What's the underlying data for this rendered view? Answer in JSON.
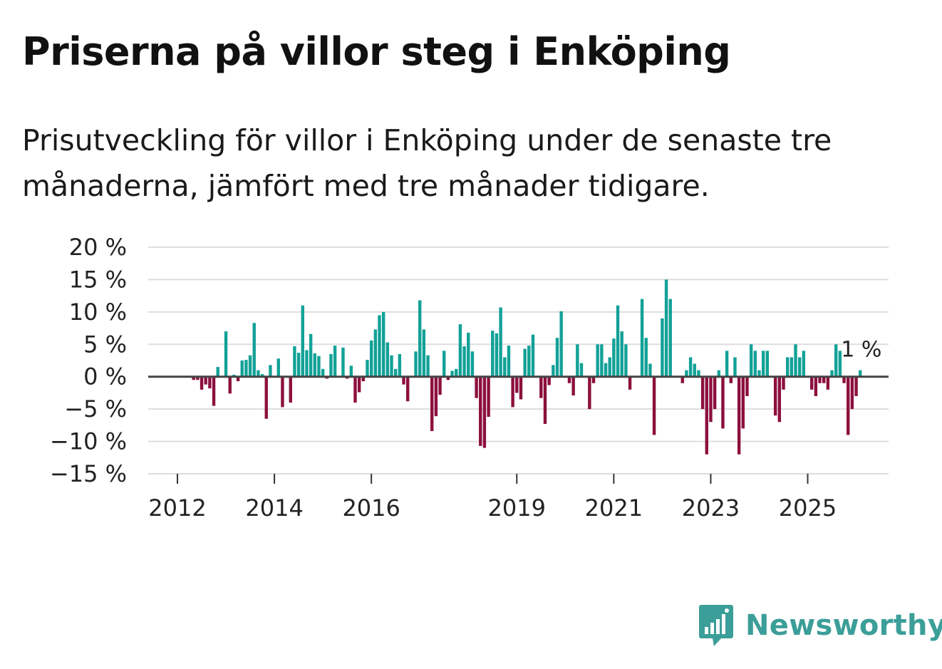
{
  "title": "Priserna på villor steg i Enköping",
  "subtitle": "Prisutveckling för villor i Enköping under de senaste tre månaderna, jämfört med tre månader tidigare.",
  "brand": {
    "name": "Newsworthy",
    "icon": "newsworthy-logo-icon"
  },
  "colors": {
    "positive": "#12a197",
    "negative": "#8c0f3d",
    "grid": "#dddddd",
    "zero_line": "#444444",
    "brand": "#3c9e99",
    "text": "#111111"
  },
  "chart_data": {
    "type": "bar",
    "title": "Priserna på villor steg i Enköping",
    "subtitle": "Prisutveckling för villor i Enköping under de senaste tre månaderna, jämfört med tre månader tidigare.",
    "xlabel": "",
    "ylabel": "",
    "unit": "%",
    "ylim": [
      -15,
      20
    ],
    "yticks": [
      20,
      15,
      10,
      5,
      0,
      -5,
      -10,
      -15
    ],
    "ytick_labels": [
      "20 %",
      "15 %",
      "10 %",
      "5 %",
      "0 %",
      "−5 %",
      "−10 %",
      "−15 %"
    ],
    "x_start": "2011-10",
    "frequency": "monthly",
    "xticks": [
      {
        "label": "2012",
        "index": 3
      },
      {
        "label": "2014",
        "index": 27
      },
      {
        "label": "2016",
        "index": 51
      },
      {
        "label": "2019",
        "index": 87
      },
      {
        "label": "2021",
        "index": 111
      },
      {
        "label": "2023",
        "index": 135
      },
      {
        "label": "2025",
        "index": 159
      }
    ],
    "last_value_label": "1 %",
    "grid": true,
    "values": [
      null,
      null,
      null,
      null,
      null,
      null,
      null,
      -0.5,
      -0.5,
      -2,
      -1.2,
      -1.8,
      -4.5,
      1.5,
      0,
      7,
      -2.6,
      0.3,
      -0.7,
      2.5,
      2.6,
      3.3,
      8.3,
      1.0,
      0.4,
      -6.5,
      1.8,
      0,
      2.8,
      -4.7,
      0,
      -4.0,
      4.7,
      3.7,
      11.0,
      4.1,
      6.6,
      3.6,
      3.2,
      1.2,
      -0.3,
      3.5,
      4.8,
      0,
      4.5,
      -0.3,
      1.7,
      -4.0,
      -2.4,
      -0.7,
      2.6,
      5.6,
      7.3,
      9.5,
      10.0,
      5.3,
      3.3,
      1.2,
      3.5,
      -1.2,
      -3.8,
      0,
      3.9,
      11.8,
      7.3,
      3.3,
      -8.4,
      -6.1,
      -2.8,
      4.0,
      -0.5,
      0.9,
      1.2,
      8.1,
      4.7,
      6.8,
      3.9,
      -3.3,
      -10.7,
      -11.0,
      -6.2,
      7.1,
      6.7,
      10.7,
      3.0,
      4.8,
      -4.7,
      -2.5,
      -3.5,
      4.3,
      4.8,
      6.5,
      0,
      -3.3,
      -7.3,
      -1.3,
      1.8,
      6.0,
      10.1,
      0,
      -1.0,
      -2.9,
      5.0,
      2.1,
      0,
      -5.0,
      -1.0,
      5.0,
      5.0,
      2.1,
      3.0,
      5.9,
      11.0,
      7.0,
      5.0,
      -2.0,
      0,
      0,
      12.0,
      6.0,
      2.0,
      -9.0,
      0,
      9.0,
      15.0,
      12.0,
      0,
      0,
      -1.0,
      1.0,
      3.0,
      2.0,
      1.0,
      -5.0,
      -12.0,
      -7.0,
      -5.0,
      1.0,
      -8.0,
      4.0,
      -1.0,
      3.0,
      -12.0,
      -8.0,
      -3.0,
      5.0,
      4.0,
      1.0,
      4.0,
      4.0,
      0,
      -6.0,
      -7.0,
      -2.0,
      3.0,
      3.0,
      5.0,
      3.0,
      4.0,
      0,
      -2.0,
      -3.0,
      -1.0,
      -1.0,
      -2.0,
      1.0,
      5.0,
      4.0,
      -1.0,
      -9.0,
      -5.0,
      -3.0,
      1.0
    ]
  }
}
